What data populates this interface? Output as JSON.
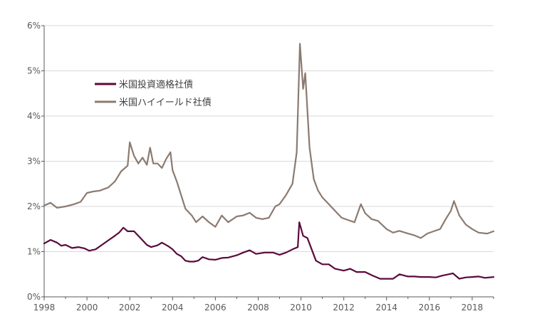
{
  "chart_data": {
    "type": "line",
    "title": "",
    "xlabel": "",
    "ylabel": "",
    "ylim": [
      0,
      6
    ],
    "xlim": [
      1998,
      2019
    ],
    "grid": "horizontal",
    "legend_position": "top-left",
    "y_ticks": [
      0,
      1,
      2,
      3,
      4,
      5,
      6
    ],
    "y_tick_labels": [
      "0%",
      "1%",
      "2%",
      "3%",
      "4%",
      "5%",
      "6%"
    ],
    "x_ticks": [
      1998,
      2000,
      2002,
      2004,
      2006,
      2008,
      2010,
      2012,
      2014,
      2016,
      2018
    ],
    "x_tick_labels": [
      "1998",
      "2000",
      "2002",
      "2004",
      "2006",
      "2008",
      "2010",
      "2012",
      "2014",
      "2016",
      "2018"
    ],
    "series": [
      {
        "name": "米国投資適格社債",
        "color": "#5a0a3c",
        "points": [
          [
            1998.0,
            1.18
          ],
          [
            1998.3,
            1.26
          ],
          [
            1998.6,
            1.2
          ],
          [
            1998.8,
            1.13
          ],
          [
            1999.0,
            1.15
          ],
          [
            1999.3,
            1.08
          ],
          [
            1999.6,
            1.1
          ],
          [
            1999.9,
            1.07
          ],
          [
            2000.1,
            1.02
          ],
          [
            2000.4,
            1.05
          ],
          [
            2000.7,
            1.15
          ],
          [
            2001.0,
            1.25
          ],
          [
            2001.3,
            1.35
          ],
          [
            2001.5,
            1.42
          ],
          [
            2001.7,
            1.53
          ],
          [
            2001.9,
            1.45
          ],
          [
            2002.2,
            1.45
          ],
          [
            2002.5,
            1.3
          ],
          [
            2002.8,
            1.15
          ],
          [
            2003.0,
            1.1
          ],
          [
            2003.3,
            1.14
          ],
          [
            2003.5,
            1.2
          ],
          [
            2003.8,
            1.12
          ],
          [
            2004.0,
            1.05
          ],
          [
            2004.2,
            0.95
          ],
          [
            2004.4,
            0.9
          ],
          [
            2004.6,
            0.8
          ],
          [
            2004.8,
            0.78
          ],
          [
            2005.0,
            0.78
          ],
          [
            2005.2,
            0.8
          ],
          [
            2005.4,
            0.88
          ],
          [
            2005.7,
            0.83
          ],
          [
            2006.0,
            0.82
          ],
          [
            2006.3,
            0.86
          ],
          [
            2006.6,
            0.87
          ],
          [
            2007.0,
            0.92
          ],
          [
            2007.3,
            0.98
          ],
          [
            2007.6,
            1.03
          ],
          [
            2007.9,
            0.95
          ],
          [
            2008.3,
            0.98
          ],
          [
            2008.7,
            0.98
          ],
          [
            2009.0,
            0.93
          ],
          [
            2009.3,
            0.98
          ],
          [
            2009.6,
            1.05
          ],
          [
            2009.85,
            1.1
          ],
          [
            2009.92,
            1.65
          ],
          [
            2010.1,
            1.35
          ],
          [
            2010.3,
            1.3
          ],
          [
            2010.5,
            1.05
          ],
          [
            2010.7,
            0.8
          ],
          [
            2011.0,
            0.72
          ],
          [
            2011.3,
            0.72
          ],
          [
            2011.6,
            0.62
          ],
          [
            2012.0,
            0.58
          ],
          [
            2012.3,
            0.62
          ],
          [
            2012.6,
            0.55
          ],
          [
            2013.0,
            0.55
          ],
          [
            2013.3,
            0.48
          ],
          [
            2013.7,
            0.4
          ],
          [
            2014.0,
            0.4
          ],
          [
            2014.3,
            0.4
          ],
          [
            2014.6,
            0.5
          ],
          [
            2015.0,
            0.45
          ],
          [
            2015.3,
            0.45
          ],
          [
            2015.6,
            0.44
          ],
          [
            2016.0,
            0.44
          ],
          [
            2016.3,
            0.43
          ],
          [
            2016.6,
            0.47
          ],
          [
            2016.9,
            0.5
          ],
          [
            2017.1,
            0.52
          ],
          [
            2017.4,
            0.4
          ],
          [
            2017.7,
            0.43
          ],
          [
            2018.0,
            0.44
          ],
          [
            2018.3,
            0.45
          ],
          [
            2018.6,
            0.42
          ],
          [
            2019.0,
            0.44
          ]
        ]
      },
      {
        "name": "米国ハイイールド社債",
        "color": "#8c7a70",
        "points": [
          [
            1998.0,
            2.02
          ],
          [
            1998.3,
            2.08
          ],
          [
            1998.6,
            1.97
          ],
          [
            1999.0,
            2.0
          ],
          [
            1999.4,
            2.05
          ],
          [
            1999.7,
            2.1
          ],
          [
            2000.0,
            2.3
          ],
          [
            2000.3,
            2.33
          ],
          [
            2000.6,
            2.35
          ],
          [
            2001.0,
            2.42
          ],
          [
            2001.3,
            2.55
          ],
          [
            2001.6,
            2.78
          ],
          [
            2001.9,
            2.9
          ],
          [
            2002.0,
            3.42
          ],
          [
            2002.2,
            3.12
          ],
          [
            2002.4,
            2.95
          ],
          [
            2002.6,
            3.08
          ],
          [
            2002.8,
            2.92
          ],
          [
            2002.95,
            3.3
          ],
          [
            2003.1,
            2.95
          ],
          [
            2003.3,
            2.95
          ],
          [
            2003.5,
            2.85
          ],
          [
            2003.7,
            3.05
          ],
          [
            2003.9,
            3.2
          ],
          [
            2004.0,
            2.8
          ],
          [
            2004.2,
            2.55
          ],
          [
            2004.4,
            2.25
          ],
          [
            2004.6,
            1.95
          ],
          [
            2004.9,
            1.8
          ],
          [
            2005.1,
            1.65
          ],
          [
            2005.4,
            1.78
          ],
          [
            2005.7,
            1.65
          ],
          [
            2006.0,
            1.55
          ],
          [
            2006.3,
            1.8
          ],
          [
            2006.6,
            1.65
          ],
          [
            2007.0,
            1.78
          ],
          [
            2007.3,
            1.8
          ],
          [
            2007.6,
            1.86
          ],
          [
            2007.9,
            1.75
          ],
          [
            2008.2,
            1.72
          ],
          [
            2008.5,
            1.75
          ],
          [
            2008.8,
            2.0
          ],
          [
            2009.0,
            2.05
          ],
          [
            2009.3,
            2.25
          ],
          [
            2009.6,
            2.5
          ],
          [
            2009.8,
            3.2
          ],
          [
            2009.95,
            5.6
          ],
          [
            2010.1,
            4.6
          ],
          [
            2010.2,
            4.95
          ],
          [
            2010.4,
            3.3
          ],
          [
            2010.6,
            2.6
          ],
          [
            2010.8,
            2.35
          ],
          [
            2011.0,
            2.2
          ],
          [
            2011.3,
            2.05
          ],
          [
            2011.6,
            1.9
          ],
          [
            2011.9,
            1.75
          ],
          [
            2012.2,
            1.7
          ],
          [
            2012.5,
            1.65
          ],
          [
            2012.8,
            2.05
          ],
          [
            2013.0,
            1.85
          ],
          [
            2013.3,
            1.72
          ],
          [
            2013.6,
            1.68
          ],
          [
            2014.0,
            1.5
          ],
          [
            2014.3,
            1.42
          ],
          [
            2014.6,
            1.46
          ],
          [
            2015.0,
            1.4
          ],
          [
            2015.3,
            1.36
          ],
          [
            2015.6,
            1.3
          ],
          [
            2015.9,
            1.4
          ],
          [
            2016.2,
            1.45
          ],
          [
            2016.5,
            1.5
          ],
          [
            2016.8,
            1.75
          ],
          [
            2017.0,
            1.9
          ],
          [
            2017.15,
            2.12
          ],
          [
            2017.4,
            1.8
          ],
          [
            2017.7,
            1.6
          ],
          [
            2018.0,
            1.5
          ],
          [
            2018.3,
            1.42
          ],
          [
            2018.7,
            1.4
          ],
          [
            2019.0,
            1.45
          ]
        ]
      }
    ]
  }
}
